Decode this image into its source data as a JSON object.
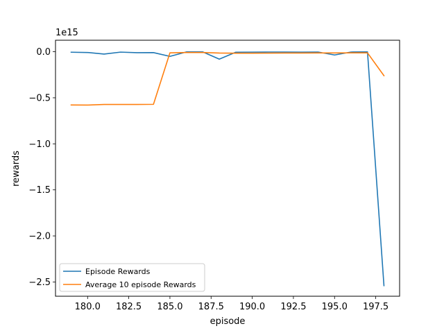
{
  "chart_data": {
    "type": "line",
    "xlabel": "episode",
    "ylabel": "rewards",
    "y_offset_label": "1e15",
    "xlim": [
      178.05,
      198.95
    ],
    "ylim": [
      -2.655,
      0.125
    ],
    "x_ticks": [
      180.0,
      182.5,
      185.0,
      187.5,
      190.0,
      192.5,
      195.0,
      197.5
    ],
    "x_tick_labels": [
      "180.0",
      "182.5",
      "185.0",
      "187.5",
      "190.0",
      "192.5",
      "195.0",
      "197.5"
    ],
    "y_ticks": [
      0.0,
      -0.5,
      -1.0,
      -1.5,
      -2.0,
      -2.5
    ],
    "y_tick_labels": [
      "0.0",
      "−0.5",
      "−1.0",
      "−1.5",
      "−2.0",
      "−2.5"
    ],
    "grid": false,
    "legend_position": "lower-left",
    "x": [
      179,
      180,
      181,
      182,
      183,
      184,
      185,
      186,
      187,
      188,
      189,
      190,
      191,
      192,
      193,
      194,
      195,
      196,
      197,
      198
    ],
    "series": [
      {
        "name": "Episode Rewards",
        "color": "#1f77b4",
        "values": [
          -0.005,
          -0.008,
          -0.025,
          -0.004,
          -0.01,
          -0.009,
          -0.05,
          -0.002,
          -0.002,
          -0.08,
          -0.005,
          -0.004,
          -0.003,
          -0.003,
          -0.004,
          -0.003,
          -0.035,
          -0.003,
          -0.002,
          -2.54
        ]
      },
      {
        "name": "Average 10 episode Rewards",
        "color": "#ff7f0e",
        "values": [
          -0.578,
          -0.579,
          -0.572,
          -0.572,
          -0.572,
          -0.571,
          -0.012,
          -0.008,
          -0.008,
          -0.014,
          -0.016,
          -0.016,
          -0.015,
          -0.014,
          -0.014,
          -0.013,
          -0.013,
          -0.012,
          -0.012,
          -0.26
        ]
      }
    ]
  }
}
